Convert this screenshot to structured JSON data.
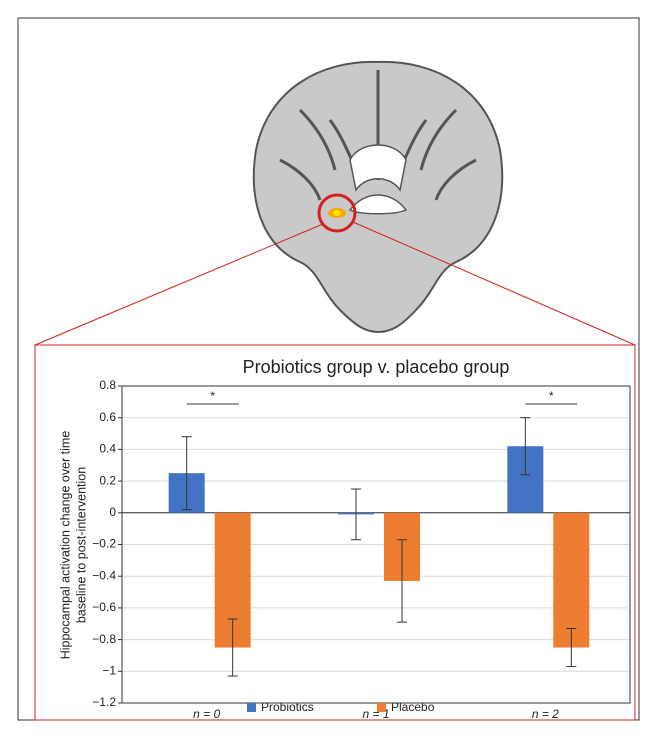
{
  "chart_data": {
    "type": "bar",
    "title": "Probiotics group v. placebo group",
    "y_label": [
      "Hippocampal activation change over time",
      "baseline to post-intervention"
    ],
    "categories": [
      "n = 0",
      "n = 1",
      "n = 2"
    ],
    "series": [
      {
        "name": "Probiotics",
        "color": "#4472c4",
        "values": [
          0.25,
          -0.01,
          0.42
        ],
        "errors": [
          0.23,
          0.16,
          0.18
        ]
      },
      {
        "name": "Placebo",
        "color": "#ed7d31",
        "values": [
          -0.85,
          -0.43,
          -0.85
        ],
        "errors": [
          0.18,
          0.26,
          0.12
        ]
      }
    ],
    "significance": [
      "*",
      null,
      "*"
    ],
    "ylim": [
      -1.2,
      0.8
    ],
    "yticks": [
      {
        "value": -1.2,
        "label": "−1.2"
      },
      {
        "value": -1,
        "label": "−1"
      },
      {
        "value": -0.8,
        "label": "−0.8"
      },
      {
        "value": -0.6,
        "label": "−0.6"
      },
      {
        "value": -0.4,
        "label": "−0.4"
      },
      {
        "value": -0.2,
        "label": "−0.2"
      },
      0,
      0.2,
      0.4,
      0.6,
      0.8
    ],
    "grid": true,
    "legend": "bottom"
  }
}
